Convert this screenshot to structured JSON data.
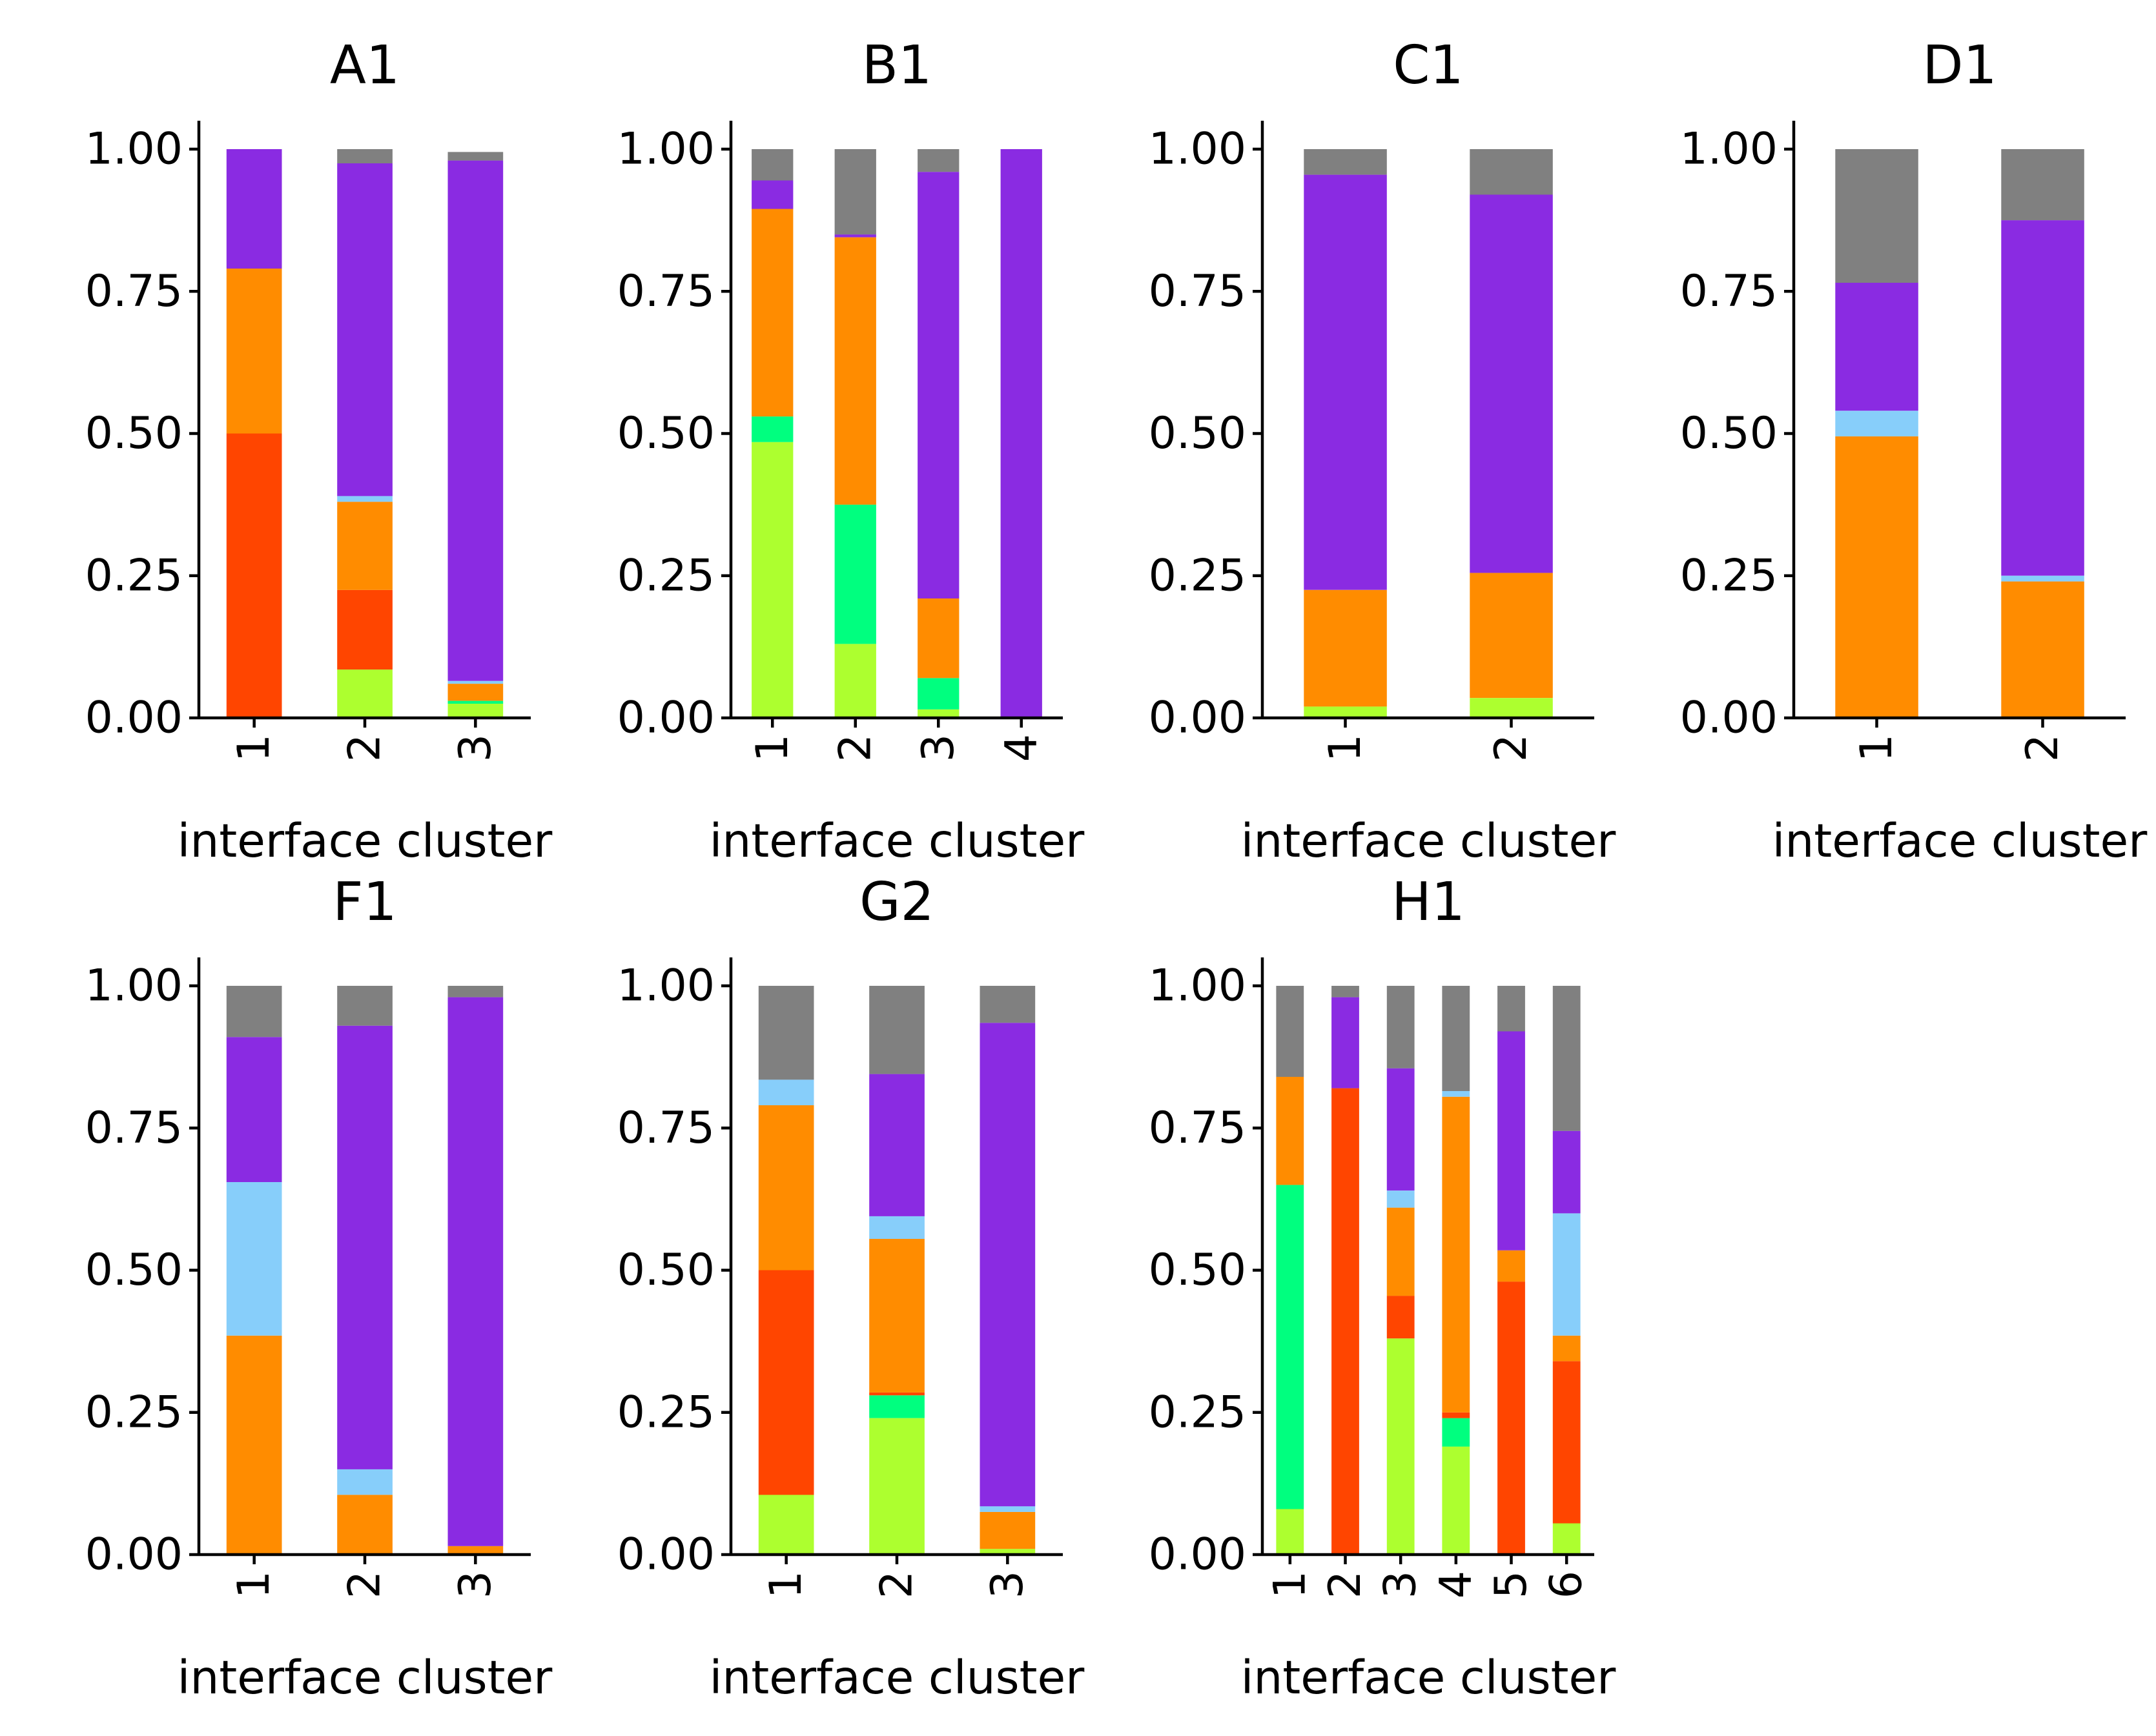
{
  "colors": {
    "lime": "#adff2f",
    "springgreen": "#00ff7f",
    "orangered": "#ff4500",
    "darkorange": "#ff8c00",
    "lightskyblue": "#87cefa",
    "blueviolet": "#8a2be2",
    "gray": "#808080"
  },
  "stack_order": [
    "lime",
    "springgreen",
    "orangered",
    "darkorange",
    "lightskyblue",
    "blueviolet",
    "gray"
  ],
  "chart_data": [
    {
      "type": "bar",
      "stacked": true,
      "title": "A1",
      "xlabel": "interface cluster",
      "ylabel": "",
      "ylim": [
        0,
        1.05
      ],
      "yticks": [
        "0.00",
        "0.25",
        "0.50",
        "0.75",
        "1.00"
      ],
      "categories": [
        "1",
        "2",
        "3"
      ],
      "series": [
        {
          "color": "lime",
          "values": [
            0.0,
            0.085,
            0.025
          ]
        },
        {
          "color": "springgreen",
          "values": [
            0.0,
            0.0,
            0.005
          ]
        },
        {
          "color": "orangered",
          "values": [
            0.5,
            0.14,
            0.0
          ]
        },
        {
          "color": "darkorange",
          "values": [
            0.29,
            0.155,
            0.03
          ]
        },
        {
          "color": "lightskyblue",
          "values": [
            0.0,
            0.01,
            0.005
          ]
        },
        {
          "color": "blueviolet",
          "values": [
            0.21,
            0.585,
            0.915
          ]
        },
        {
          "color": "gray",
          "values": [
            0.0,
            0.025,
            0.015
          ]
        }
      ]
    },
    {
      "type": "bar",
      "stacked": true,
      "title": "B1",
      "xlabel": "interface cluster",
      "ylabel": "",
      "ylim": [
        0,
        1.05
      ],
      "yticks": [
        "0.00",
        "0.25",
        "0.50",
        "0.75",
        "1.00"
      ],
      "categories": [
        "1",
        "2",
        "3",
        "4"
      ],
      "series": [
        {
          "color": "lime",
          "values": [
            0.485,
            0.13,
            0.015,
            0.0
          ]
        },
        {
          "color": "springgreen",
          "values": [
            0.045,
            0.245,
            0.055,
            0.0
          ]
        },
        {
          "color": "orangered",
          "values": [
            0.0,
            0.0,
            0.0,
            0.0
          ]
        },
        {
          "color": "darkorange",
          "values": [
            0.365,
            0.47,
            0.14,
            0.0
          ]
        },
        {
          "color": "lightskyblue",
          "values": [
            0.0,
            0.0,
            0.0,
            0.0
          ]
        },
        {
          "color": "blueviolet",
          "values": [
            0.05,
            0.005,
            0.75,
            1.0
          ]
        },
        {
          "color": "gray",
          "values": [
            0.055,
            0.15,
            0.04,
            0.0
          ]
        }
      ]
    },
    {
      "type": "bar",
      "stacked": true,
      "title": "C1",
      "xlabel": "interface cluster",
      "ylabel": "",
      "ylim": [
        0,
        1.05
      ],
      "yticks": [
        "0.00",
        "0.25",
        "0.50",
        "0.75",
        "1.00"
      ],
      "categories": [
        "1",
        "2"
      ],
      "series": [
        {
          "color": "blueviolet",
          "values": [
            0.73,
            0.665
          ]
        },
        {
          "color": "darkorange",
          "values": [
            0.205,
            0.22
          ]
        },
        {
          "color": "gray",
          "values": [
            0.045,
            0.08
          ]
        },
        {
          "color": "lime",
          "values": [
            0.02,
            0.035
          ]
        }
      ]
    },
    {
      "type": "bar",
      "stacked": true,
      "title": "D1",
      "xlabel": "interface cluster",
      "ylabel": "",
      "ylim": [
        0,
        1.05
      ],
      "yticks": [
        "0.00",
        "0.25",
        "0.50",
        "0.75",
        "1.00"
      ],
      "categories": [
        "1",
        "2"
      ],
      "series": [
        {
          "color": "darkorange",
          "values": [
            0.495,
            0.24
          ]
        },
        {
          "color": "lightskyblue",
          "values": [
            0.045,
            0.01
          ]
        },
        {
          "color": "blueviolet",
          "values": [
            0.225,
            0.625
          ]
        },
        {
          "color": "gray",
          "values": [
            0.235,
            0.125
          ]
        }
      ]
    },
    {
      "type": "bar",
      "stacked": true,
      "title": "F1",
      "xlabel": "interface cluster",
      "ylabel": "",
      "ylim": [
        0,
        1.05
      ],
      "yticks": [
        "0.00",
        "0.25",
        "0.50",
        "0.75",
        "1.00"
      ],
      "categories": [
        "1",
        "2",
        "3"
      ],
      "series": [
        {
          "color": "darkorange",
          "values": [
            0.385,
            0.105,
            0.015
          ]
        },
        {
          "color": "lightskyblue",
          "values": [
            0.27,
            0.045,
            0.0
          ]
        },
        {
          "color": "blueviolet",
          "values": [
            0.255,
            0.78,
            0.965
          ]
        },
        {
          "color": "gray",
          "values": [
            0.09,
            0.07,
            0.02
          ]
        }
      ]
    },
    {
      "type": "bar",
      "stacked": true,
      "title": "G2",
      "xlabel": "interface cluster",
      "ylabel": "",
      "ylim": [
        0,
        1.05
      ],
      "yticks": [
        "0.00",
        "0.25",
        "0.50",
        "0.75",
        "1.00"
      ],
      "categories": [
        "1",
        "2",
        "3"
      ],
      "series": [
        {
          "color": "lime",
          "values": [
            0.105,
            0.24,
            0.01
          ]
        },
        {
          "color": "springgreen",
          "values": [
            0.0,
            0.04,
            0.0
          ]
        },
        {
          "color": "orangered",
          "values": [
            0.395,
            0.005,
            0.0
          ]
        },
        {
          "color": "darkorange",
          "values": [
            0.29,
            0.27,
            0.065
          ]
        },
        {
          "color": "lightskyblue",
          "values": [
            0.045,
            0.04,
            0.01
          ]
        },
        {
          "color": "blueviolet",
          "values": [
            0.0,
            0.25,
            0.85
          ]
        },
        {
          "color": "gray",
          "values": [
            0.165,
            0.155,
            0.065
          ]
        }
      ]
    },
    {
      "type": "bar",
      "stacked": true,
      "title": "H1",
      "xlabel": "interface cluster",
      "ylabel": "",
      "ylim": [
        0,
        1.05
      ],
      "yticks": [
        "0.00",
        "0.25",
        "0.50",
        "0.75",
        "1.00"
      ],
      "categories": [
        "1",
        "2",
        "3",
        "4",
        "5",
        "6"
      ],
      "series": [
        {
          "color": "lime",
          "values": [
            0.08,
            0.0,
            0.38,
            0.19,
            0.0,
            0.055
          ]
        },
        {
          "color": "springgreen",
          "values": [
            0.57,
            0.0,
            0.0,
            0.05,
            0.0,
            0.0
          ]
        },
        {
          "color": "orangered",
          "values": [
            0.0,
            0.82,
            0.075,
            0.01,
            0.48,
            0.285
          ]
        },
        {
          "color": "darkorange",
          "values": [
            0.19,
            0.0,
            0.155,
            0.555,
            0.055,
            0.045
          ]
        },
        {
          "color": "lightskyblue",
          "values": [
            0.0,
            0.0,
            0.03,
            0.01,
            0.0,
            0.215
          ]
        },
        {
          "color": "blueviolet",
          "values": [
            0.0,
            0.16,
            0.215,
            0.0,
            0.385,
            0.145
          ]
        },
        {
          "color": "gray",
          "values": [
            0.16,
            0.02,
            0.145,
            0.185,
            0.08,
            0.255
          ]
        }
      ]
    }
  ]
}
